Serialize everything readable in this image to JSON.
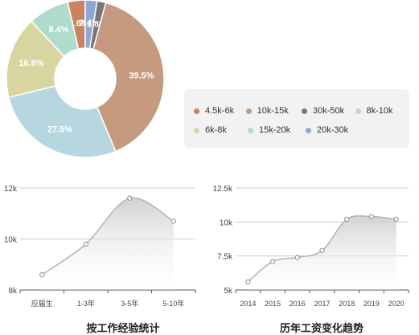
{
  "chart_data": [
    {
      "type": "pie",
      "title": "",
      "slices": [
        {
          "label": "4.5k-6k",
          "value": 3.6,
          "display": "3.6%",
          "color": "#c9845f"
        },
        {
          "label": "10k-15k",
          "value": 39.5,
          "display": "39.5%",
          "color": "#c69a7e"
        },
        {
          "label": "30k-50k",
          "value": 1.8,
          "display": "1.8%",
          "color": "#777777"
        },
        {
          "label": "8k-10k",
          "value": 27.5,
          "display": "27.5%",
          "color": "#b7d7e0"
        },
        {
          "label": "6k-8k",
          "value": 16.8,
          "display": "16.8%",
          "color": "#d9d5a0"
        },
        {
          "label": "15k-20k",
          "value": 8.4,
          "display": "8.4%",
          "color": "#b0dccb"
        },
        {
          "label": "20k-30k",
          "value": 2.4,
          "display": "2.4%",
          "color": "#8fa7d6"
        }
      ],
      "order": [
        "4.5k-6k",
        "20k-30k",
        "30k-50k",
        "10k-15k",
        "8k-10k",
        "6k-8k",
        "15k-20k"
      ],
      "legend": [
        [
          "4.5k-6k",
          "10k-15k",
          "30k-50k",
          "8k-10k"
        ],
        [
          "6k-8k",
          "15k-20k",
          "20k-30k"
        ]
      ],
      "legend_placement": "right"
    },
    {
      "type": "area",
      "title": "按工作经验统计",
      "categories": [
        "应届生",
        "1-3年",
        "3-5年",
        "5-10年"
      ],
      "series": [
        {
          "values": [
            8600,
            9800,
            11600,
            10700
          ]
        }
      ],
      "ylim": [
        8000,
        12000
      ],
      "yticks": [
        8000,
        10000,
        12000
      ],
      "ytick_labels": [
        "8k",
        "10k",
        "12k"
      ],
      "grid": true
    },
    {
      "type": "area",
      "title": "历年工资变化趋势",
      "categories": [
        "2014",
        "2015",
        "2016",
        "2017",
        "2018",
        "2019",
        "2020"
      ],
      "series": [
        {
          "values": [
            5600,
            7100,
            7400,
            7900,
            10200,
            10400,
            10200
          ]
        }
      ],
      "ylim": [
        5000,
        12500
      ],
      "yticks": [
        5000,
        7500,
        10000,
        12500
      ],
      "ytick_labels": [
        "5k",
        "7.5k",
        "10k",
        "12.5k"
      ],
      "grid": true
    }
  ]
}
